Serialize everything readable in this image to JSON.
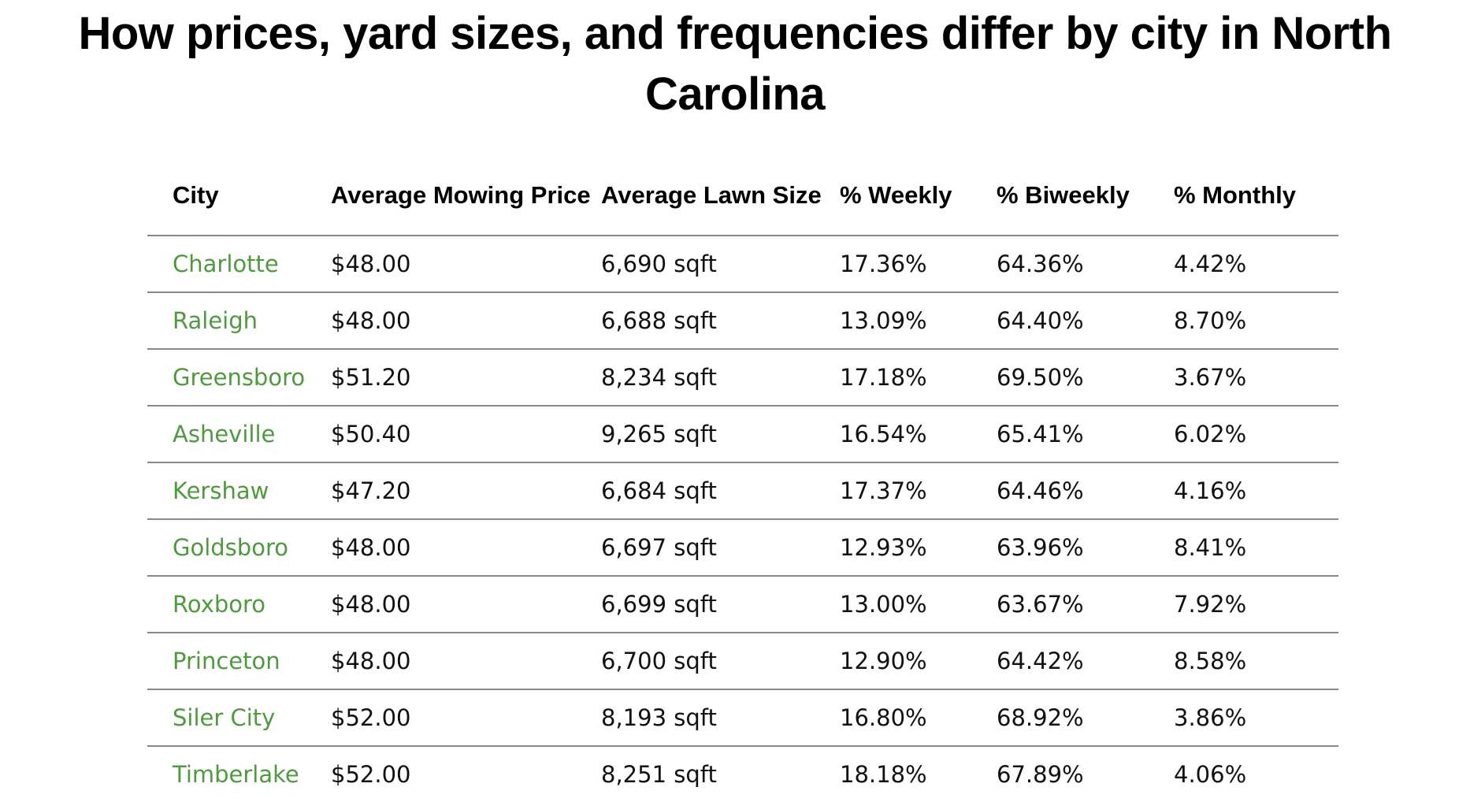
{
  "title": "How prices, yard sizes, and frequencies differ by city in North Carolina",
  "colors": {
    "city_text": "#4f9a3e",
    "rule": "#888888"
  },
  "chart_data": {
    "type": "table",
    "title": "How prices, yard sizes, and frequencies differ by city in North Carolina",
    "columns": [
      "City",
      "Average Mowing Price",
      "Average Lawn Size",
      "% Weekly",
      "% Biweekly",
      "% Monthly"
    ],
    "rows": [
      [
        "Charlotte",
        "$48.00",
        "6,690 sqft",
        "17.36%",
        "64.36%",
        "4.42%"
      ],
      [
        "Raleigh",
        "$48.00",
        "6,688 sqft",
        "13.09%",
        "64.40%",
        "8.70%"
      ],
      [
        "Greensboro",
        "$51.20",
        "8,234 sqft",
        "17.18%",
        "69.50%",
        "3.67%"
      ],
      [
        "Asheville",
        "$50.40",
        "9,265 sqft",
        "16.54%",
        "65.41%",
        "6.02%"
      ],
      [
        "Kershaw",
        "$47.20",
        "6,684 sqft",
        "17.37%",
        "64.46%",
        "4.16%"
      ],
      [
        "Goldsboro",
        "$48.00",
        "6,697 sqft",
        "12.93%",
        "63.96%",
        "8.41%"
      ],
      [
        "Roxboro",
        "$48.00",
        "6,699 sqft",
        "13.00%",
        "63.67%",
        "7.92%"
      ],
      [
        "Princeton",
        "$48.00",
        "6,700 sqft",
        "12.90%",
        "64.42%",
        "8.58%"
      ],
      [
        "Siler City",
        "$52.00",
        "8,193 sqft",
        "16.80%",
        "68.92%",
        "3.86%"
      ],
      [
        "Timberlake",
        "$52.00",
        "8,251 sqft",
        "18.18%",
        "67.89%",
        "4.06%"
      ]
    ]
  }
}
